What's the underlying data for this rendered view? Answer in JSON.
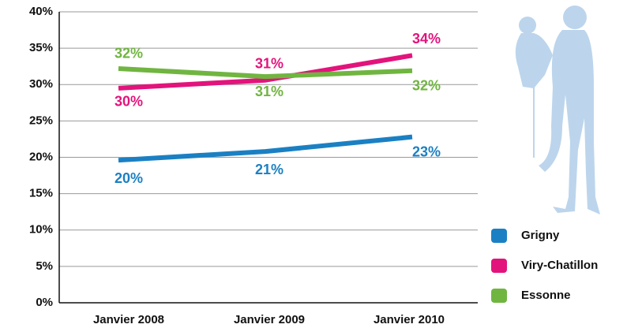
{
  "chart_data": {
    "type": "line",
    "categories": [
      "Janvier 2008",
      "Janvier 2009",
      "Janvier 2010"
    ],
    "series": [
      {
        "name": "Grigny",
        "color": "#1b80c3",
        "values": [
          19.6,
          20.8,
          22.8
        ],
        "value_labels": [
          "20%",
          "21%",
          "23%"
        ]
      },
      {
        "name": "Viry-Chatillon",
        "color": "#e2147c",
        "values": [
          29.5,
          30.6,
          34.0
        ],
        "value_labels": [
          "30%",
          "31%",
          "34%"
        ]
      },
      {
        "name": "Essonne",
        "color": "#70b540",
        "values": [
          32.2,
          31.1,
          31.9
        ],
        "value_labels": [
          "32%",
          "31%",
          "32%"
        ]
      }
    ],
    "ylim": [
      0,
      40
    ],
    "yticks": [
      {
        "value": 0,
        "label": "0%"
      },
      {
        "value": 5,
        "label": "5%"
      },
      {
        "value": 10,
        "label": "10%"
      },
      {
        "value": 15,
        "label": "15%"
      },
      {
        "value": 20,
        "label": "20%"
      },
      {
        "value": 25,
        "label": "25%"
      },
      {
        "value": 30,
        "label": "30%"
      },
      {
        "value": 35,
        "label": "35%"
      },
      {
        "value": 40,
        "label": "40%"
      }
    ],
    "grid": true
  }
}
